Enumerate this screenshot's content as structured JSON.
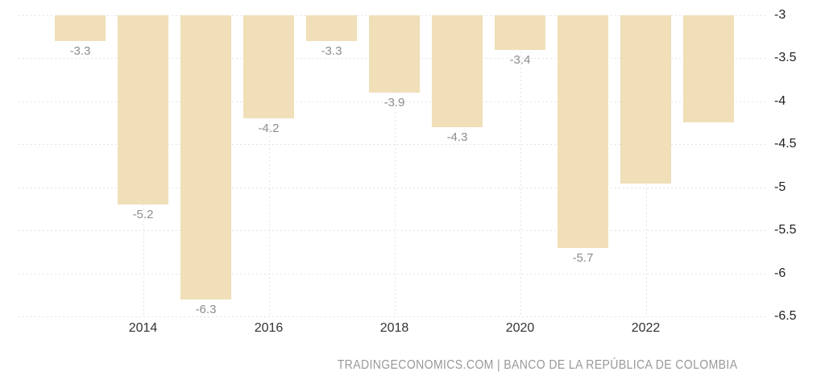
{
  "chart_data": {
    "type": "bar",
    "title": "",
    "categories": [
      2013,
      2014,
      2015,
      2016,
      2017,
      2018,
      2019,
      2020,
      2021,
      2022,
      2023
    ],
    "values": [
      -3.3,
      -5.2,
      -6.3,
      -4.2,
      -3.3,
      -3.9,
      -4.3,
      -3.4,
      -5.7,
      -4.96,
      -4.24
    ],
    "bar_labels": [
      "-3.3",
      "-5.2",
      "-6.3",
      "-4.2",
      "-3.3",
      "-3.9",
      "-4.3",
      "-3.4",
      "-5.7",
      "",
      ""
    ],
    "ylim": [
      -6.5,
      -3
    ],
    "y_ticks": [
      {
        "value": -3,
        "label": "-3"
      },
      {
        "value": -3.5,
        "label": "-3.5"
      },
      {
        "value": -4,
        "label": "-4"
      },
      {
        "value": -4.5,
        "label": "-4.5"
      },
      {
        "value": -5,
        "label": "-5"
      },
      {
        "value": -5.5,
        "label": "-5.5"
      },
      {
        "value": -6,
        "label": "-6"
      },
      {
        "value": -6.5,
        "label": "-6.5"
      }
    ],
    "x_ticks": [
      {
        "label": "2014",
        "bar_index": 1
      },
      {
        "label": "2016",
        "bar_index": 3
      },
      {
        "label": "2018",
        "bar_index": 5
      },
      {
        "label": "2020",
        "bar_index": 7
      },
      {
        "label": "2022",
        "bar_index": 9
      }
    ],
    "grid": true,
    "legend_position": "none",
    "xlabel": "",
    "ylabel": ""
  },
  "colors": {
    "background": "#ffffff",
    "bar": "#f0dfb8",
    "grid": "#e4e4e4",
    "bar_label": "#8d8d8d",
    "axis_label": "#222222",
    "year_label": "#333333",
    "footer": "#999999"
  },
  "footer": {
    "attribution": "TRADINGECONOMICS.COM | BANCO DE LA REPÚBLICA DE COLOMBIA"
  }
}
